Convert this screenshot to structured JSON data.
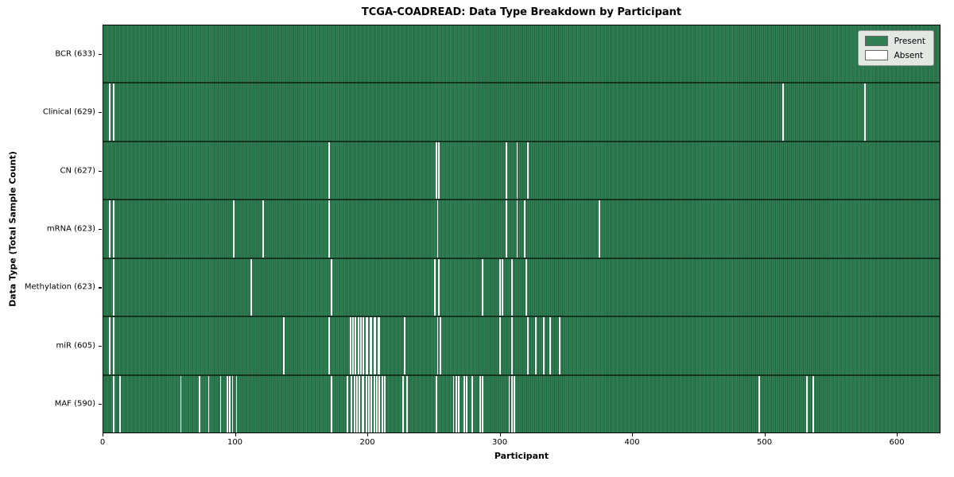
{
  "chart_data": {
    "type": "heatmap",
    "title": "TCGA-COADREAD: Data Type Breakdown by Participant",
    "xlabel": "Participant",
    "ylabel": "Data Type (Total Sample Count)",
    "x_ticks": [
      0,
      100,
      200,
      300,
      400,
      500,
      600
    ],
    "x_range": [
      0,
      633
    ],
    "n_participants": 633,
    "grid": false,
    "legend_position": "upper right",
    "colors": {
      "present": "#2f8153",
      "absent": "#ffffff"
    },
    "legend": [
      {
        "label": "Present",
        "color": "#2f8153"
      },
      {
        "label": "Absent",
        "color": "#ffffff"
      }
    ],
    "rows": [
      {
        "name": "BCR",
        "label": "BCR (633)",
        "total": 633,
        "absent": []
      },
      {
        "name": "Clinical",
        "label": "Clinical (629)",
        "total": 629,
        "absent": [
          4,
          7,
          513,
          575
        ]
      },
      {
        "name": "CN",
        "label": "CN (627)",
        "total": 627,
        "absent": [
          170,
          251,
          253,
          304,
          312,
          320
        ]
      },
      {
        "name": "mRNA",
        "label": "mRNA (623)",
        "total": 623,
        "absent": [
          4,
          7,
          98,
          120,
          170,
          252,
          304,
          312,
          318,
          374
        ]
      },
      {
        "name": "Methylation",
        "label": "Methylation (623)",
        "total": 623,
        "absent": [
          7,
          111,
          172,
          250,
          253,
          286,
          299,
          301,
          308,
          319
        ]
      },
      {
        "name": "miR",
        "label": "miR (605)",
        "total": 605,
        "absent": [
          4,
          7,
          136,
          170,
          186,
          188,
          190,
          192,
          194,
          196,
          198,
          199,
          201,
          202,
          204,
          205,
          207,
          208,
          227,
          252,
          254,
          299,
          308,
          320,
          326,
          332,
          337,
          344
        ]
      },
      {
        "name": "MAF",
        "label": "MAF (590)",
        "total": 590,
        "absent": [
          7,
          12,
          58,
          72,
          79,
          88,
          93,
          95,
          97,
          100,
          172,
          184,
          187,
          189,
          191,
          193,
          195,
          196,
          198,
          200,
          202,
          204,
          206,
          208,
          210,
          212,
          226,
          229,
          251,
          264,
          266,
          268,
          272,
          274,
          278,
          284,
          286,
          306,
          308,
          310,
          495,
          531,
          536
        ]
      }
    ]
  }
}
